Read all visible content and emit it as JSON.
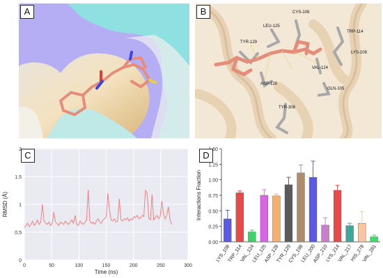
{
  "panels": {
    "a": {
      "label": "A"
    },
    "b": {
      "label": "B",
      "residues": [
        "CYS-108",
        "LEU-125",
        "TRP-114",
        "TYR-129",
        "LYS-108",
        "VAL-124",
        "ASP-128",
        "GLN-105",
        "TYR-308"
      ]
    },
    "c": {
      "label": "C"
    },
    "d": {
      "label": "D"
    }
  },
  "chart_data": [
    {
      "type": "line",
      "xlabel": "Time (ns)",
      "ylabel": "RMSD (Å)",
      "xlim": [
        0,
        300
      ],
      "ylim": [
        0,
        2
      ],
      "xticks": [
        0,
        50,
        100,
        150,
        200,
        250,
        300
      ],
      "yticks": [
        0,
        0.5,
        1,
        1.5,
        2
      ],
      "grid": true,
      "color": "#f08080",
      "series": [
        {
          "x": [
            0,
            3,
            6,
            9,
            12,
            15,
            18,
            21,
            24,
            27,
            30,
            33,
            36,
            39,
            42,
            45,
            48,
            51,
            54,
            57,
            60,
            63,
            66,
            69,
            72,
            75,
            78,
            81,
            84,
            87,
            90,
            93,
            96,
            99,
            102,
            105,
            108,
            111,
            114,
            117,
            120,
            123,
            126,
            129,
            132,
            135,
            138,
            141,
            144,
            147,
            150,
            153,
            156,
            159,
            162,
            165,
            168,
            171,
            174,
            177,
            180,
            183,
            186,
            189,
            192,
            195,
            198,
            201,
            204,
            207,
            210,
            213,
            216,
            219,
            222,
            225,
            228,
            231,
            234,
            237,
            240,
            243,
            246,
            249,
            252,
            255,
            258,
            261,
            264,
            267,
            270
          ],
          "y": [
            0.58,
            0.62,
            0.66,
            0.6,
            0.64,
            0.7,
            0.62,
            0.66,
            0.72,
            0.64,
            0.68,
            1.0,
            0.7,
            0.66,
            0.64,
            0.68,
            0.62,
            0.66,
            0.86,
            0.68,
            0.66,
            0.62,
            0.68,
            0.66,
            0.64,
            0.7,
            0.66,
            0.64,
            0.68,
            0.72,
            0.66,
            0.8,
            0.64,
            0.62,
            0.7,
            0.66,
            0.64,
            0.68,
            0.72,
            1.26,
            0.7,
            0.66,
            0.68,
            0.64,
            0.7,
            0.74,
            0.68,
            0.66,
            0.72,
            0.74,
            0.78,
            1.2,
            0.9,
            0.72,
            0.7,
            0.74,
            0.68,
            0.7,
            1.1,
            0.72,
            0.7,
            0.74,
            0.72,
            0.76,
            0.7,
            0.74,
            0.72,
            0.78,
            0.76,
            0.8,
            0.74,
            0.76,
            0.8,
            0.78,
            1.25,
            1.2,
            0.76,
            0.72,
            1.18,
            0.72,
            0.76,
            0.8,
            0.74,
            0.78,
            1.06,
            0.82,
            0.74,
            0.8,
            0.96,
            0.72,
            0.64
          ]
        }
      ]
    },
    {
      "type": "bar",
      "ylabel": "Interactions Fraction",
      "ylim": [
        0,
        1.5
      ],
      "yticks": [
        0,
        0.25,
        0.5,
        0.75,
        1.0,
        1.25,
        1.5
      ],
      "categories": [
        "LYS_108",
        "TRP_114",
        "VAL_124",
        "LEU_125",
        "ASP_128",
        "TYR_129",
        "CYS_198",
        "LEU_200",
        "ASP_210",
        "LYS_214",
        "VAL_217",
        "HIS_278",
        "VAL_281"
      ],
      "values": [
        0.37,
        0.79,
        0.16,
        0.75,
        0.74,
        0.92,
        1.11,
        1.04,
        0.27,
        0.83,
        0.26,
        0.3,
        0.08
      ],
      "errors": [
        0.14,
        0.03,
        0.03,
        0.09,
        0.03,
        0.12,
        0.13,
        0.26,
        0.12,
        0.08,
        0.04,
        0.19,
        0.03
      ],
      "colors": [
        "#5a5ae6",
        "#e84a4a",
        "#3fd06a",
        "#d964e6",
        "#f5b06e",
        "#5a5a5a",
        "#b08c6e",
        "#5a5ae6",
        "#c880cc",
        "#e84a4a",
        "#3fa89a",
        "#f6c7a0",
        "#3fe06a"
      ]
    }
  ]
}
